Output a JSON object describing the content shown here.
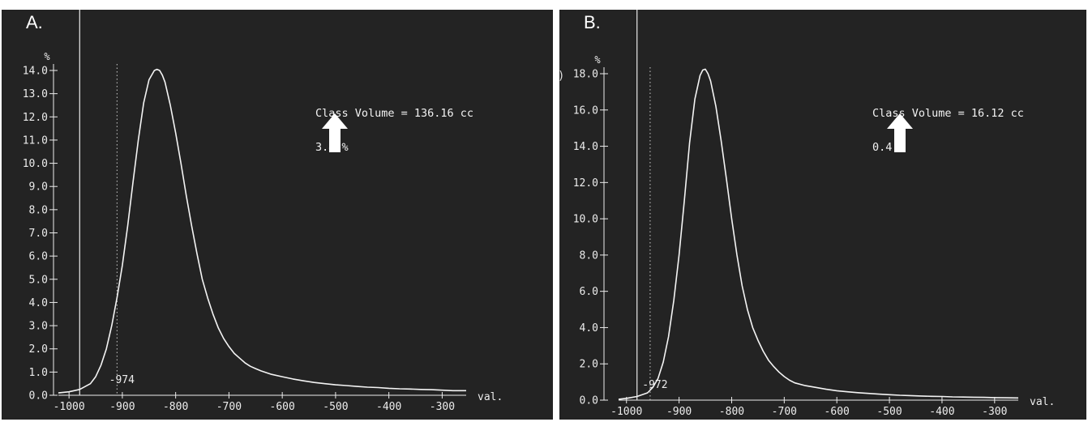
{
  "chart_data": [
    {
      "type": "line",
      "panel_label": "A.",
      "ylabel": "%",
      "xlabel": "val.",
      "xlim": [
        -1020,
        -255
      ],
      "ylim": [
        0,
        14.0
      ],
      "x_ticks": [
        -1000,
        -900,
        -800,
        -700,
        -600,
        -500,
        -400,
        -300
      ],
      "x_tick_labels": [
        "-1000",
        "-900",
        "-800",
        "-700",
        "-600",
        "-500",
        "-400",
        "-300"
      ],
      "y_ticks": [
        0,
        1,
        2,
        3,
        4,
        5,
        6,
        7,
        8,
        9,
        10,
        11,
        12,
        13,
        14
      ],
      "y_tick_labels": [
        "0.0",
        "1.0",
        "2.0",
        "3.0",
        "4.0",
        "5.0",
        "6.0",
        "7.0",
        "8.0",
        "9.0",
        "10.0",
        "11.0",
        "12.0",
        "13.0",
        "14.0"
      ],
      "solid_vline_x": -980,
      "dotted_vline_x": -910,
      "threshold_label": "-974",
      "annotation_line1": "Class Volume = 136.16 cc",
      "annotation_line2": "3.4 %",
      "series": [
        {
          "x": [
            -1020,
            -1000,
            -980,
            -960,
            -950,
            -940,
            -930,
            -920,
            -910,
            -900,
            -890,
            -880,
            -870,
            -860,
            -850,
            -840,
            -835,
            -830,
            -825,
            -820,
            -810,
            -800,
            -790,
            -780,
            -770,
            -760,
            -750,
            -740,
            -730,
            -720,
            -710,
            -700,
            -690,
            -680,
            -670,
            -660,
            -650,
            -640,
            -620,
            -600,
            -580,
            -560,
            -540,
            -520,
            -500,
            -480,
            -460,
            -440,
            -420,
            -400,
            -380,
            -360,
            -340,
            -320,
            -300,
            -280,
            -255
          ],
          "y": [
            0.1,
            0.15,
            0.25,
            0.5,
            0.8,
            1.3,
            2.0,
            3.0,
            4.2,
            5.6,
            7.3,
            9.2,
            11.0,
            12.6,
            13.6,
            14.0,
            14.05,
            14.0,
            13.8,
            13.5,
            12.5,
            11.3,
            10.0,
            8.6,
            7.3,
            6.1,
            5.0,
            4.2,
            3.5,
            2.9,
            2.45,
            2.1,
            1.8,
            1.6,
            1.4,
            1.25,
            1.15,
            1.05,
            0.9,
            0.8,
            0.7,
            0.62,
            0.55,
            0.5,
            0.45,
            0.42,
            0.38,
            0.35,
            0.33,
            0.3,
            0.28,
            0.27,
            0.25,
            0.24,
            0.22,
            0.2,
            0.2
          ]
        }
      ]
    },
    {
      "type": "line",
      "panel_label": "B.",
      "ylabel": "%",
      "xlabel": "val.",
      "stray_glyph": ")",
      "xlim": [
        -1015,
        -255
      ],
      "ylim": [
        0,
        18.0
      ],
      "x_ticks": [
        -1000,
        -900,
        -800,
        -700,
        -600,
        -500,
        -400,
        -300
      ],
      "x_tick_labels": [
        "-1000",
        "-900",
        "-800",
        "-700",
        "-600",
        "-500",
        "-400",
        "-300"
      ],
      "y_ticks": [
        0,
        2,
        4,
        6,
        8,
        10,
        12,
        14,
        16,
        18
      ],
      "y_tick_labels": [
        "0.0",
        "2.0",
        "4.0",
        "6.0",
        "8.0",
        "10.0",
        "12.0",
        "14.0",
        "16.0",
        "18.0"
      ],
      "solid_vline_x": -980,
      "dotted_vline_x": -955,
      "threshold_label": "-972",
      "annotation_line1": "Class Volume = 16.12 cc",
      "annotation_line2": "0.4 %",
      "series": [
        {
          "x": [
            -1015,
            -1000,
            -980,
            -960,
            -950,
            -940,
            -930,
            -920,
            -910,
            -900,
            -890,
            -880,
            -870,
            -860,
            -855,
            -850,
            -845,
            -840,
            -830,
            -820,
            -810,
            -800,
            -790,
            -780,
            -770,
            -760,
            -750,
            -740,
            -730,
            -720,
            -710,
            -700,
            -690,
            -680,
            -660,
            -640,
            -620,
            -600,
            -580,
            -560,
            -540,
            -520,
            -500,
            -480,
            -460,
            -440,
            -420,
            -400,
            -380,
            -360,
            -340,
            -320,
            -300,
            -280,
            -255
          ],
          "y": [
            0.05,
            0.1,
            0.2,
            0.4,
            0.7,
            1.2,
            2.1,
            3.5,
            5.5,
            8.0,
            11.0,
            14.2,
            16.6,
            17.9,
            18.2,
            18.25,
            18.0,
            17.6,
            16.2,
            14.3,
            12.2,
            10.0,
            8.0,
            6.3,
            5.0,
            4.0,
            3.3,
            2.7,
            2.2,
            1.85,
            1.55,
            1.3,
            1.1,
            0.95,
            0.8,
            0.7,
            0.6,
            0.52,
            0.46,
            0.41,
            0.37,
            0.33,
            0.3,
            0.27,
            0.25,
            0.23,
            0.21,
            0.2,
            0.18,
            0.17,
            0.16,
            0.15,
            0.14,
            0.13,
            0.12
          ]
        }
      ]
    }
  ]
}
